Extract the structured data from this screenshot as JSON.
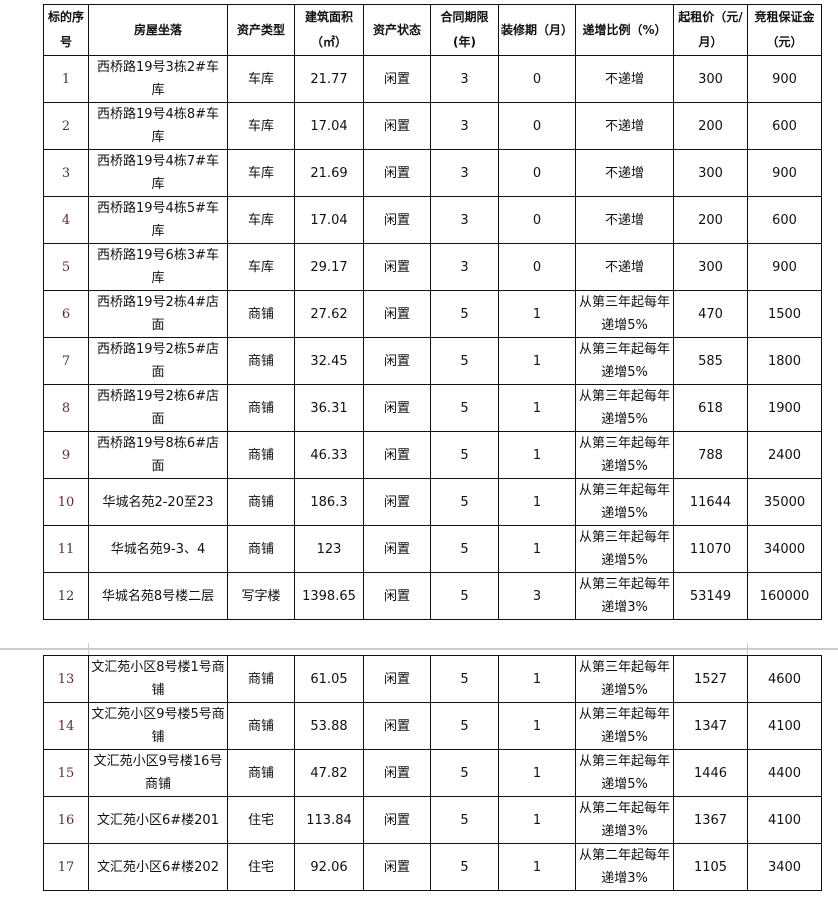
{
  "headers": [
    "标的序号",
    "房屋坐落",
    "资产类型",
    "建筑面积（㎡）",
    "资产状态",
    "合同期限(年)",
    "装修期（月）",
    "递增比例（%）",
    "起租价（元/月）",
    "竞租保证金（元）"
  ],
  "rows_part1": [
    [
      "1",
      "西桥路19号3栋2#车库",
      "车库",
      "21.77",
      "闲置",
      "3",
      "0",
      "不递增",
      "300",
      "900"
    ],
    [
      "2",
      "西桥路19号4栋8#车库",
      "车库",
      "17.04",
      "闲置",
      "3",
      "0",
      "不递增",
      "200",
      "600"
    ],
    [
      "3",
      "西桥路19号4栋7#车库",
      "车库",
      "21.69",
      "闲置",
      "3",
      "0",
      "不递增",
      "300",
      "900"
    ],
    [
      "4",
      "西桥路19号4栋5#车库",
      "车库",
      "17.04",
      "闲置",
      "3",
      "0",
      "不递增",
      "200",
      "600"
    ],
    [
      "5",
      "西桥路19号6栋3#车库",
      "车库",
      "29.17",
      "闲置",
      "3",
      "0",
      "不递增",
      "300",
      "900"
    ],
    [
      "6",
      "西桥路19号2栋4#店面",
      "商铺",
      "27.62",
      "闲置",
      "5",
      "1",
      "从第三年起每年递增5%",
      "470",
      "1500"
    ],
    [
      "7",
      "西桥路19号2栋5#店面",
      "商铺",
      "32.45",
      "闲置",
      "5",
      "1",
      "从第三年起每年递增5%",
      "585",
      "1800"
    ],
    [
      "8",
      "西桥路19号2栋6#店面",
      "商铺",
      "36.31",
      "闲置",
      "5",
      "1",
      "从第三年起每年递增5%",
      "618",
      "1900"
    ],
    [
      "9",
      "西桥路19号8栋6#店面",
      "商铺",
      "46.33",
      "闲置",
      "5",
      "1",
      "从第三年起每年递增5%",
      "788",
      "2400"
    ],
    [
      "10",
      "华城名苑2-20至23",
      "商铺",
      "186.3",
      "闲置",
      "5",
      "1",
      "从第三年起每年递增5%",
      "11644",
      "35000"
    ],
    [
      "11",
      "华城名苑9-3、4",
      "商铺",
      "123",
      "闲置",
      "5",
      "1",
      "从第三年起每年递增5%",
      "11070",
      "34000"
    ],
    [
      "12",
      "华城名苑8号楼二层",
      "写字楼",
      "1398.65",
      "闲置",
      "5",
      "3",
      "从第三年起每年递增3%",
      "53149",
      "160000"
    ]
  ],
  "rows_part2": [
    [
      "13",
      "文汇苑小区8号楼1号商铺",
      "商铺",
      "61.05",
      "闲置",
      "5",
      "1",
      "从第三年起每年递增5%",
      "1527",
      "4600"
    ],
    [
      "14",
      "文汇苑小区9号楼5号商铺",
      "商铺",
      "53.88",
      "闲置",
      "5",
      "1",
      "从第三年起每年递增5%",
      "1347",
      "4100"
    ],
    [
      "15",
      "文汇苑小区9号楼16号商铺",
      "商铺",
      "47.82",
      "闲置",
      "5",
      "1",
      "从第三年起每年递增5%",
      "1446",
      "4400"
    ],
    [
      "16",
      "文汇苑小区6#楼201",
      "住宅",
      "113.84",
      "闲置",
      "5",
      "1",
      "从第二年起每年递增3%",
      "1367",
      "4100"
    ],
    [
      "17",
      "文汇苑小区6#楼202",
      "住宅",
      "92.06",
      "闲置",
      "5",
      "1",
      "从第二年起每年递增3%",
      "1105",
      "3400"
    ]
  ]
}
